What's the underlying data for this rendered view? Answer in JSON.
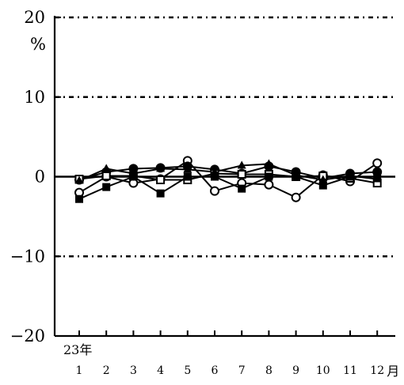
{
  "chart_data": {
    "type": "line",
    "title": "",
    "ylabel": "%",
    "xlabel": "月",
    "year_label": "23年",
    "x": [
      "1",
      "2",
      "3",
      "4",
      "5",
      "6",
      "7",
      "8",
      "9",
      "10",
      "11",
      "12"
    ],
    "ylim": [
      -20,
      20
    ],
    "y_ticks": [
      "20",
      "10",
      "0",
      "−10",
      "−20"
    ],
    "y_tick_values": [
      20,
      10,
      0,
      -10,
      -20
    ],
    "gridlines_at": [
      20,
      10,
      -10
    ],
    "grid": true,
    "colors": {
      "line": "#000000",
      "grid": "#000000",
      "background": "#ffffff"
    },
    "series": [
      {
        "marker": "circle-open",
        "values": [
          -2.0,
          0.0,
          -0.8,
          -0.3,
          2.0,
          -1.8,
          -0.8,
          -1.0,
          -2.6,
          0.2,
          -0.6,
          1.7
        ]
      },
      {
        "marker": "circle-filled",
        "values": [
          -0.4,
          0.6,
          1.0,
          1.1,
          1.3,
          0.9,
          0.4,
          1.3,
          0.6,
          -0.2,
          0.4,
          0.6
        ]
      },
      {
        "marker": "square-open",
        "values": [
          -0.3,
          0.1,
          0.1,
          -0.4,
          -0.4,
          0.4,
          0.3,
          0.3,
          0.0,
          0.1,
          -0.2,
          -0.8
        ]
      },
      {
        "marker": "square-filled",
        "values": [
          -2.8,
          -1.3,
          0.0,
          -2.1,
          0.0,
          0.0,
          -1.5,
          0.0,
          0.0,
          -1.1,
          0.0,
          0.0
        ]
      },
      {
        "marker": "triangle-filled",
        "values": [
          -0.5,
          1.0,
          0.4,
          1.0,
          0.9,
          0.6,
          1.4,
          1.6,
          0.2,
          -0.4,
          0.1,
          -0.3
        ]
      }
    ]
  }
}
